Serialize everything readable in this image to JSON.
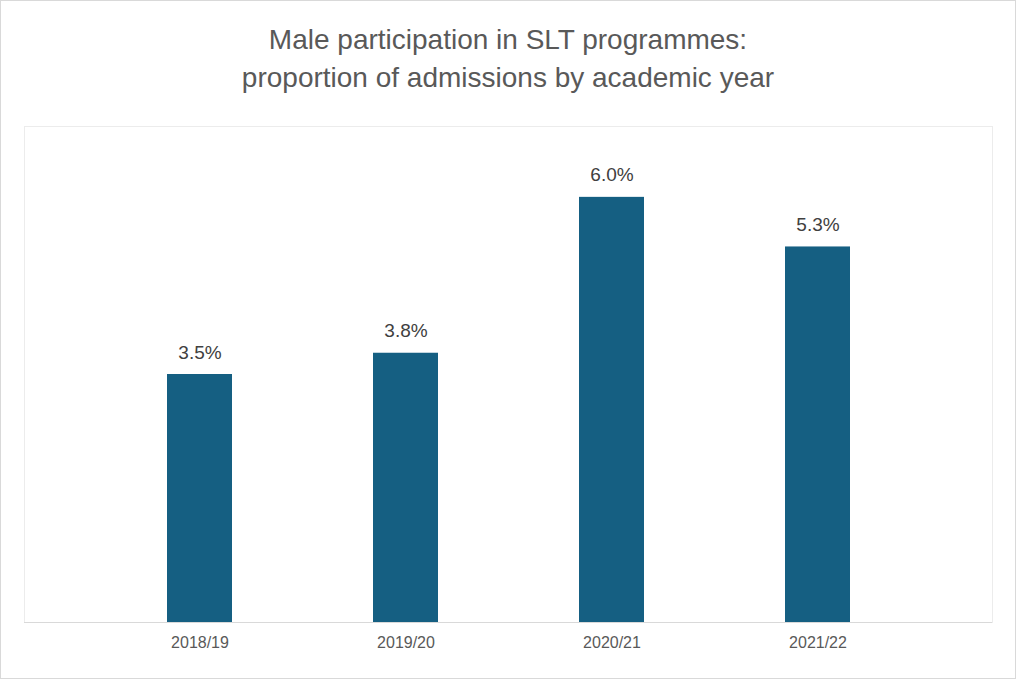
{
  "chart_data": {
    "type": "bar",
    "title": [
      "Male participation in SLT programmes:",
      "proportion of admissions by academic year"
    ],
    "categories": [
      "2018/19",
      "2019/20",
      "2020/21",
      "2021/22"
    ],
    "values": [
      3.5,
      3.8,
      6.0,
      5.3
    ],
    "value_labels": [
      "3.5%",
      "3.8%",
      "6.0%",
      "5.3%"
    ],
    "data_labels": true,
    "color": "#155f82",
    "ylim": [
      0,
      7
    ],
    "tick_labels": "x",
    "grid": false
  }
}
